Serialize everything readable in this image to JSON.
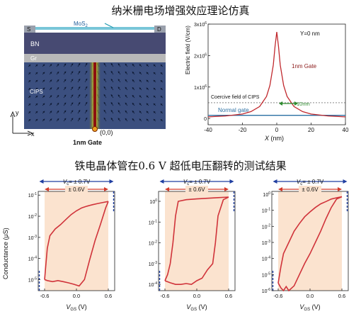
{
  "title_top": "纳米栅电场增强效应理论仿真",
  "title_bottom": "铁电晶体管在0.6 V 超低电压翻转的测试结果",
  "device": {
    "s_label": "S",
    "d_label": "D",
    "mos2_label": "MoS",
    "mos2_sub": "2",
    "bn_label": "BN",
    "gr_label": "Gr",
    "cips_label": "CIPS",
    "y_axis_label": "y",
    "x_axis_label": "x",
    "origin_label": "(0,0)",
    "gate_label": "1nm Gate",
    "colors": {
      "substrate": "#3b4f7f",
      "bn": "#474a72",
      "gr": "#b8b8b8",
      "contact": "#9aa0ac",
      "gate_core": "#c8d23c"
    }
  },
  "efield_chart": {
    "ylabel": "Electric field (V/cm)",
    "xlabel": "X",
    "xlabel_unit": " (nm)",
    "annotation_y": "Y=0 nm",
    "series_1nm_label": "1nm Gate",
    "series_normal_label": "Normal gate",
    "coercive_label": "Coercive field of CIPS",
    "width_label": "10nm",
    "x_ticks": [
      "-40",
      "-20",
      "0",
      "20",
      "40"
    ],
    "y_ticks": [
      "0",
      "1x10",
      "2x10",
      "3x10"
    ],
    "y_tick_exp": "6"
  },
  "conductance_panels": {
    "ylabel": "Conductance (μS)",
    "vc_label_prefix": "V",
    "vc_label_sub": "c",
    "vc_label_value": "= ± 0.7V",
    "vsweep_label": "± 0.6V",
    "xlabel_v": "V",
    "xlabel_sub": "GS",
    "xlabel_unit": " (V)",
    "x_ticks": [
      "-0.6",
      "0.0",
      "0.6"
    ],
    "panel1_y_ticks": [
      "10",
      "10",
      "10",
      "10",
      "10",
      "10",
      "10"
    ],
    "panel1_y_exps": [
      "-1",
      "-2",
      "-3",
      "-4",
      "-5",
      "",
      ""
    ],
    "panel2_y_ticks": [
      "10",
      "10",
      "10",
      "10",
      "10"
    ],
    "panel2_y_exps": [
      "0",
      "-1",
      "-2",
      "-3",
      "-4"
    ],
    "panel3_y_ticks": [
      "10",
      "10",
      "10",
      "10",
      "10",
      "10",
      "10"
    ],
    "panel3_y_exps": [
      "0",
      "-1",
      "-2",
      "-3",
      "-4",
      "-5",
      "-6"
    ]
  },
  "chart_data": [
    {
      "type": "line",
      "title": "",
      "xlabel": "X (nm)",
      "ylabel": "Electric field (V/cm)",
      "xlim": [
        -40,
        40
      ],
      "ylim": [
        -200000,
        3000000
      ],
      "series": [
        {
          "name": "1nm Gate",
          "x": [
            -40,
            -30,
            -20,
            -15,
            -10,
            -6,
            -4,
            -2,
            -1,
            0,
            1,
            2,
            4,
            6,
            10,
            15,
            20,
            30,
            40
          ],
          "y": [
            50000,
            80000,
            140000,
            220000,
            380000,
            700000,
            1050000,
            1700000,
            2300000,
            2750000,
            2300000,
            1700000,
            1050000,
            700000,
            380000,
            220000,
            140000,
            80000,
            50000
          ]
        },
        {
          "name": "Normal gate",
          "x": [
            -40,
            40
          ],
          "y": [
            100000,
            100000
          ]
        }
      ],
      "annotations": [
        "Y=0 nm",
        "Coercive field of CIPS",
        "10nm"
      ],
      "reference_lines": [
        {
          "label": "Coercive field of CIPS",
          "y": 500000
        }
      ]
    },
    {
      "type": "line",
      "title": "",
      "xlabel": "VGS (V)",
      "ylabel": "Conductance (μS)",
      "xlim": [
        -0.72,
        0.72
      ],
      "y_scale": "log",
      "ylim": [
        3e-06,
        0.15
      ],
      "series": [
        {
          "name": "",
          "x": [
            -0.6,
            -0.55,
            -0.45,
            -0.35,
            -0.25,
            -0.15,
            -0.05,
            0.05,
            0.15,
            0.25,
            0.35,
            0.45,
            0.55,
            0.6
          ],
          "y": [
            1e-05,
            9e-06,
            8e-06,
            9e-06,
            8e-06,
            7e-06,
            6e-06,
            5e-06,
            1e-05,
            9e-05,
            0.0007,
            0.004,
            0.025,
            0.05
          ]
        },
        {
          "name": "",
          "x": [
            0.6,
            0.5,
            0.4,
            0.3,
            0.2,
            0.1,
            0.0,
            -0.1,
            -0.2,
            -0.3,
            -0.4,
            -0.5,
            -0.55,
            -0.6
          ],
          "y": [
            0.05,
            0.045,
            0.04,
            0.035,
            0.03,
            0.025,
            0.018,
            0.012,
            0.007,
            0.004,
            0.0025,
            0.0012,
            0.0003,
            1e-05
          ]
        }
      ]
    },
    {
      "type": "line",
      "title": "",
      "xlabel": "VGS (V)",
      "ylabel": "",
      "xlim": [
        -0.72,
        0.72
      ],
      "y_scale": "log",
      "ylim": [
        5e-05,
        3
      ],
      "series": [
        {
          "name": "",
          "x": [
            -0.6,
            -0.5,
            -0.4,
            -0.3,
            -0.2,
            -0.1,
            0.0,
            0.1,
            0.2,
            0.3,
            0.35,
            0.4,
            0.5,
            0.6
          ],
          "y": [
            0.00015,
            0.00012,
            0.0001,
            0.0001,
            0.00011,
            0.0001,
            0.00015,
            0.0002,
            0.0005,
            0.001,
            0.01,
            0.2,
            1.2,
            1.6
          ]
        },
        {
          "name": "",
          "x": [
            0.6,
            0.4,
            0.2,
            0.0,
            -0.2,
            -0.35,
            -0.4,
            -0.45,
            -0.5,
            -0.55,
            -0.6
          ],
          "y": [
            1.6,
            1.5,
            1.4,
            1.3,
            1.2,
            1.0,
            0.2,
            0.01,
            0.001,
            0.0003,
            0.00015
          ]
        }
      ]
    },
    {
      "type": "line",
      "title": "",
      "xlabel": "VGS (V)",
      "ylabel": "",
      "xlim": [
        -0.72,
        0.72
      ],
      "y_scale": "log",
      "ylim": [
        1e-06,
        1.5
      ],
      "series": [
        {
          "name": "",
          "x": [
            -0.6,
            -0.55,
            -0.5,
            -0.45,
            -0.4,
            -0.3,
            -0.2,
            -0.1,
            0.0,
            0.1,
            0.2,
            0.3,
            0.4,
            0.5,
            0.6
          ],
          "y": [
            3e-06,
            1.5e-06,
            1e-06,
            1.8e-06,
            1e-06,
            2e-06,
            1e-05,
            5e-05,
            0.0002,
            0.001,
            0.005,
            0.03,
            0.15,
            0.5,
            0.7
          ]
        },
        {
          "name": "",
          "x": [
            0.6,
            0.5,
            0.4,
            0.3,
            0.2,
            0.1,
            0.0,
            -0.1,
            -0.2,
            -0.3,
            -0.4,
            -0.5,
            -0.55,
            -0.6
          ],
          "y": [
            0.7,
            0.6,
            0.5,
            0.35,
            0.25,
            0.15,
            0.08,
            0.04,
            0.015,
            0.005,
            0.001,
            0.0002,
            3e-05,
            3e-06
          ]
        }
      ]
    }
  ]
}
